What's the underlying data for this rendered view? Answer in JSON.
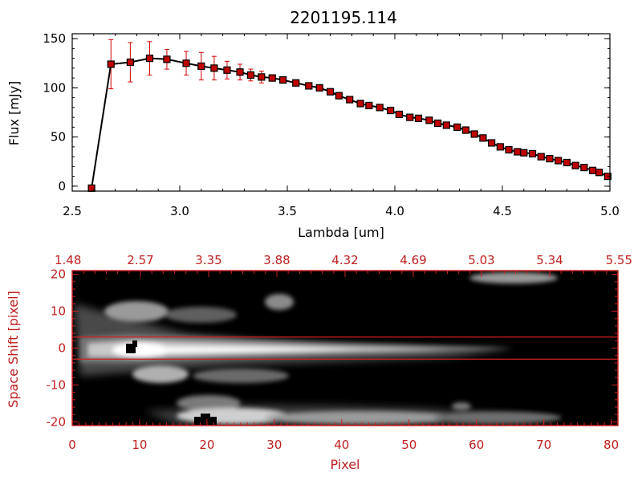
{
  "chart_data": [
    {
      "type": "line",
      "title": "2201195.114",
      "xlabel": "Lambda [um]",
      "ylabel": "Flux [mJy]",
      "xlim": [
        2.5,
        5.0
      ],
      "ylim": [
        -5,
        155
      ],
      "xticks": [
        "2.5",
        "3.0",
        "3.5",
        "4.0",
        "4.5",
        "5.0"
      ],
      "yticks": [
        "0",
        "50",
        "100",
        "150"
      ],
      "colors": {
        "line": "#000000",
        "marker": "#c00000",
        "errorbar": "#d00000",
        "axes": "#000000"
      },
      "series": [
        {
          "x": [
            2.59,
            2.68,
            2.77,
            2.86,
            2.94,
            3.03,
            3.1,
            3.16,
            3.22,
            3.28,
            3.33,
            3.38,
            3.43,
            3.48,
            3.54,
            3.6,
            3.65,
            3.7,
            3.74,
            3.79,
            3.84,
            3.88,
            3.93,
            3.98,
            4.02,
            4.07,
            4.11,
            4.16,
            4.2,
            4.24,
            4.29,
            4.33,
            4.37,
            4.41,
            4.45,
            4.49,
            4.53,
            4.57,
            4.6,
            4.64,
            4.68,
            4.72,
            4.76,
            4.8,
            4.84,
            4.88,
            4.92,
            4.95,
            4.99
          ],
          "y": [
            -2,
            124,
            126,
            130,
            129,
            125,
            122,
            120,
            118,
            116,
            113,
            111,
            110,
            108,
            105,
            102,
            100,
            96,
            92,
            88,
            84,
            82,
            80,
            77,
            73,
            70,
            69,
            67,
            64,
            62,
            60,
            57,
            53,
            49,
            44,
            40,
            37,
            35,
            34,
            33,
            30,
            28,
            26,
            24,
            21,
            19,
            16,
            14,
            10
          ],
          "err": [
            0,
            25,
            20,
            17,
            10,
            12,
            14,
            12,
            9,
            8,
            6,
            6,
            0,
            0,
            0,
            0,
            0,
            0,
            0,
            0,
            0,
            0,
            0,
            0,
            0,
            0,
            0,
            0,
            0,
            0,
            0,
            0,
            0,
            0,
            0,
            0,
            0,
            0,
            0,
            0,
            0,
            0,
            0,
            0,
            0,
            0,
            0,
            0,
            0
          ]
        }
      ]
    },
    {
      "type": "heatmap",
      "xlabel": "Pixel",
      "ylabel": "Space Shift [pixel]",
      "xlim": [
        0,
        81
      ],
      "ylim": [
        -21,
        21
      ],
      "xticks": [
        "0",
        "10",
        "20",
        "30",
        "40",
        "50",
        "60",
        "70",
        "80"
      ],
      "yticks": [
        "-20",
        "-10",
        "0",
        "10",
        "20"
      ],
      "top_ticks": [
        "1.48",
        "2.57",
        "3.35",
        "3.88",
        "4.32",
        "4.69",
        "5.03",
        "5.34",
        "5.55"
      ],
      "extraction_window": [
        -3,
        3
      ],
      "colors": {
        "frame": "#d02020",
        "label": "#c02020",
        "background": "#000000"
      }
    }
  ]
}
